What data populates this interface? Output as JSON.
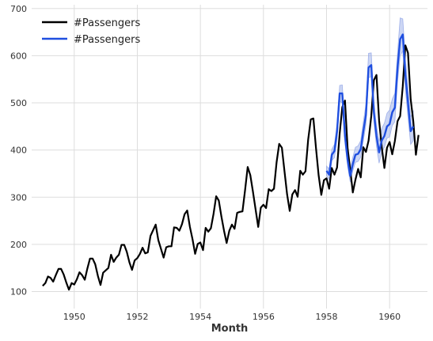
{
  "chart_data": {
    "type": "line",
    "title": "",
    "xlabel": "Month",
    "ylabel": "",
    "xlim": [
      1948.65,
      1961.2
    ],
    "ylim": [
      64,
      708
    ],
    "x_ticks": [
      1950,
      1952,
      1954,
      1956,
      1958,
      1960
    ],
    "y_ticks": [
      100,
      200,
      300,
      400,
      500,
      600,
      700
    ],
    "grid": true,
    "legend_position": "top-left",
    "x_start": 1949.0,
    "x_step": 0.0833333,
    "series": [
      {
        "name": "#Passengers",
        "color": "#000000",
        "values": [
          112,
          118,
          132,
          129,
          121,
          135,
          148,
          148,
          136,
          119,
          104,
          118,
          115,
          126,
          141,
          135,
          125,
          149,
          170,
          170,
          158,
          133,
          114,
          140,
          145,
          150,
          178,
          163,
          172,
          178,
          199,
          199,
          184,
          162,
          146,
          166,
          171,
          180,
          193,
          181,
          183,
          218,
          230,
          242,
          209,
          191,
          172,
          194,
          196,
          196,
          236,
          235,
          229,
          243,
          264,
          272,
          237,
          211,
          180,
          201,
          204,
          188,
          235,
          227,
          234,
          264,
          302,
          293,
          259,
          229,
          203,
          229,
          242,
          233,
          267,
          269,
          270,
          315,
          364,
          347,
          312,
          274,
          237,
          278,
          284,
          277,
          317,
          313,
          318,
          374,
          413,
          405,
          355,
          306,
          271,
          306,
          315,
          301,
          356,
          348,
          355,
          422,
          465,
          467,
          404,
          347,
          305,
          336,
          340,
          318,
          362,
          348,
          363,
          435,
          491,
          505,
          404,
          359,
          310,
          337,
          360,
          342,
          406,
          396,
          420,
          472,
          548,
          559,
          463,
          407,
          362,
          405,
          417,
          391,
          419,
          461,
          472,
          535,
          622,
          606,
          508,
          461,
          390,
          432
        ]
      },
      {
        "name": "#Passengers",
        "color": "#1f4fe0",
        "band_color": "#8fa3e6",
        "x_start": 1958.0,
        "values": [
          356,
          348,
          390,
          398,
          440,
          520,
          520,
          430,
          380,
          345,
          370,
          390,
          392,
          402,
          440,
          475,
          575,
          580,
          480,
          430,
          395,
          420,
          430,
          450,
          455,
          480,
          490,
          575,
          635,
          645,
          560,
          500,
          440,
          450
        ],
        "band_lower": [
          346,
          337,
          378,
          384,
          424,
          503,
          500,
          414,
          366,
          332,
          356,
          374,
          376,
          385,
          420,
          455,
          553,
          556,
          460,
          408,
          372,
          396,
          406,
          425,
          428,
          452,
          460,
          545,
          600,
          610,
          528,
          470,
          412,
          420
        ],
        "band_upper": [
          366,
          360,
          402,
          412,
          456,
          537,
          538,
          448,
          395,
          360,
          385,
          406,
          409,
          420,
          460,
          497,
          605,
          606,
          502,
          452,
          418,
          446,
          457,
          478,
          485,
          508,
          520,
          605,
          680,
          678,
          595,
          532,
          470,
          484
        ]
      }
    ]
  }
}
